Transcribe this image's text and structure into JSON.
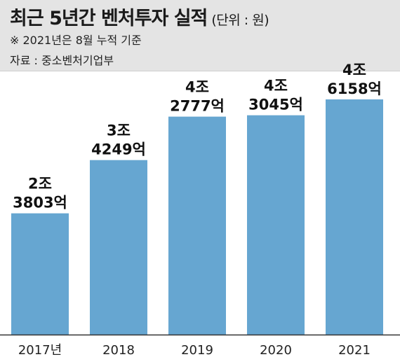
{
  "header": {
    "title": "최근 5년간 벤처투자 실적",
    "unit": "(단위 : 원)",
    "note": "※ 2021년은 8월 누적 기준",
    "source": "자료 : 중소벤처기업부"
  },
  "colors": {
    "bar": "#66a6d1",
    "header_bg": "#e4e4e4",
    "axis": "#333333"
  },
  "chart_data": {
    "type": "bar",
    "title": "최근 5년간 벤처투자 실적",
    "unit": "(단위 : 원)",
    "categories": [
      "2017년",
      "2018",
      "2019",
      "2020",
      "2021"
    ],
    "values": [
      23803,
      34249,
      42777,
      43045,
      46158
    ],
    "value_unit": "억원",
    "labels": [
      [
        "2조",
        "3803억"
      ],
      [
        "3조",
        "4249억"
      ],
      [
        "4조",
        "2777억"
      ],
      [
        "4조",
        "3045억"
      ],
      [
        "4조",
        "6158억"
      ]
    ],
    "ylim": [
      0,
      50000
    ],
    "grid": false,
    "legend": "none"
  }
}
